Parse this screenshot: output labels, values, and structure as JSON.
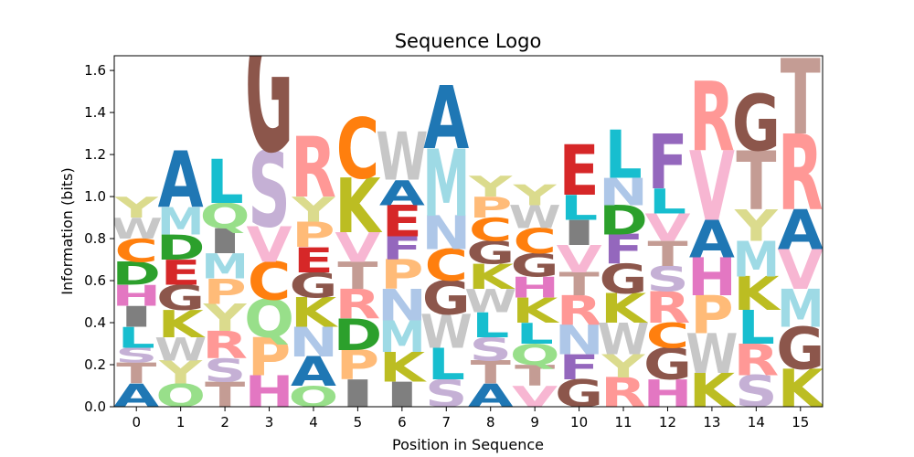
{
  "chart_data": {
    "type": "sequence-logo",
    "title": "Sequence Logo",
    "xlabel": "Position in Sequence",
    "ylabel": "Information (bits)",
    "ylim": [
      0,
      1.67
    ],
    "yticks": [
      "0.0",
      "0.2",
      "0.4",
      "0.6",
      "0.8",
      "1.0",
      "1.2",
      "1.4",
      "1.6"
    ],
    "ytick_values": [
      0,
      0.2,
      0.4,
      0.6,
      0.8,
      1.0,
      1.2,
      1.4,
      1.6
    ],
    "positions": [
      "0",
      "1",
      "2",
      "3",
      "4",
      "5",
      "6",
      "7",
      "8",
      "9",
      "10",
      "11",
      "12",
      "13",
      "14",
      "15"
    ],
    "grid": false,
    "colors": {
      "A": "#1f77b4",
      "C": "#ff7f0e",
      "D": "#2ca02c",
      "E": "#d62728",
      "F": "#9467bd",
      "G": "#8c564b",
      "H": "#e377c2",
      "I": "#7f7f7f",
      "K": "#bcbd22",
      "L": "#17becf",
      "M": "#9edae5",
      "N": "#aec7e8",
      "P": "#ffbb78",
      "Q": "#98df8a",
      "R": "#ff9896",
      "S": "#c5b0d5",
      "T": "#c49c94",
      "V": "#f7b6d2",
      "W": "#c7c7c7",
      "Y": "#dbdb8d"
    },
    "stacks": [
      [
        [
          "A",
          0.11
        ],
        [
          "T",
          0.1
        ],
        [
          "S",
          0.07
        ],
        [
          "L",
          0.1
        ],
        [
          "I",
          0.1
        ],
        [
          "H",
          0.1
        ],
        [
          "D",
          0.11
        ],
        [
          "C",
          0.11
        ],
        [
          "W",
          0.1
        ],
        [
          "Y",
          0.1
        ]
      ],
      [
        [
          "Q",
          0.11
        ],
        [
          "Y",
          0.11
        ],
        [
          "W",
          0.11
        ],
        [
          "K",
          0.13
        ],
        [
          "G",
          0.12
        ],
        [
          "E",
          0.12
        ],
        [
          "D",
          0.12
        ],
        [
          "M",
          0.13
        ],
        [
          "A",
          0.27
        ]
      ],
      [
        [
          "T",
          0.12
        ],
        [
          "S",
          0.11
        ],
        [
          "R",
          0.13
        ],
        [
          "Y",
          0.13
        ],
        [
          "P",
          0.12
        ],
        [
          "M",
          0.12
        ],
        [
          "I",
          0.12
        ],
        [
          "Q",
          0.12
        ],
        [
          "L",
          0.21
        ]
      ],
      [
        [
          "H",
          0.15
        ],
        [
          "P",
          0.18
        ],
        [
          "Q",
          0.18
        ],
        [
          "C",
          0.18
        ],
        [
          "V",
          0.17
        ],
        [
          "S",
          0.36
        ],
        [
          "G",
          0.63
        ]
      ],
      [
        [
          "Q",
          0.1
        ],
        [
          "A",
          0.14
        ],
        [
          "N",
          0.14
        ],
        [
          "K",
          0.14
        ],
        [
          "G",
          0.12
        ],
        [
          "E",
          0.12
        ],
        [
          "P",
          0.12
        ],
        [
          "Y",
          0.12
        ],
        [
          "R",
          0.29
        ]
      ],
      [
        [
          "I",
          0.13
        ],
        [
          "P",
          0.14
        ],
        [
          "D",
          0.15
        ],
        [
          "R",
          0.14
        ],
        [
          "T",
          0.13
        ],
        [
          "V",
          0.14
        ],
        [
          "K",
          0.26
        ],
        [
          "C",
          0.29
        ]
      ],
      [
        [
          "I",
          0.12
        ],
        [
          "K",
          0.14
        ],
        [
          "M",
          0.15
        ],
        [
          "N",
          0.15
        ],
        [
          "P",
          0.14
        ],
        [
          "F",
          0.11
        ],
        [
          "E",
          0.15
        ],
        [
          "A",
          0.12
        ],
        [
          "W",
          0.23
        ]
      ],
      [
        [
          "S",
          0.13
        ],
        [
          "L",
          0.15
        ],
        [
          "W",
          0.16
        ],
        [
          "G",
          0.16
        ],
        [
          "C",
          0.15
        ],
        [
          "N",
          0.16
        ],
        [
          "M",
          0.32
        ],
        [
          "A",
          0.3
        ]
      ],
      [
        [
          "A",
          0.11
        ],
        [
          "T",
          0.11
        ],
        [
          "S",
          0.11
        ],
        [
          "L",
          0.12
        ],
        [
          "W",
          0.11
        ],
        [
          "K",
          0.12
        ],
        [
          "G",
          0.11
        ],
        [
          "C",
          0.11
        ],
        [
          "P",
          0.1
        ],
        [
          "Y",
          0.1
        ]
      ],
      [
        [
          "V",
          0.1
        ],
        [
          "T",
          0.1
        ],
        [
          "Q",
          0.1
        ],
        [
          "L",
          0.1
        ],
        [
          "K",
          0.12
        ],
        [
          "H",
          0.1
        ],
        [
          "G",
          0.11
        ],
        [
          "C",
          0.12
        ],
        [
          "W",
          0.11
        ],
        [
          "Y",
          0.1
        ]
      ],
      [
        [
          "G",
          0.13
        ],
        [
          "F",
          0.12
        ],
        [
          "N",
          0.14
        ],
        [
          "R",
          0.14
        ],
        [
          "T",
          0.11
        ],
        [
          "V",
          0.13
        ],
        [
          "I",
          0.12
        ],
        [
          "L",
          0.12
        ],
        [
          "E",
          0.24
        ]
      ],
      [
        [
          "R",
          0.14
        ],
        [
          "Y",
          0.11
        ],
        [
          "W",
          0.15
        ],
        [
          "K",
          0.14
        ],
        [
          "G",
          0.14
        ],
        [
          "F",
          0.14
        ],
        [
          "D",
          0.14
        ],
        [
          "N",
          0.13
        ],
        [
          "L",
          0.23
        ]
      ],
      [
        [
          "H",
          0.13
        ],
        [
          "G",
          0.15
        ],
        [
          "C",
          0.12
        ],
        [
          "R",
          0.15
        ],
        [
          "S",
          0.12
        ],
        [
          "T",
          0.12
        ],
        [
          "V",
          0.13
        ],
        [
          "L",
          0.12
        ],
        [
          "F",
          0.26
        ]
      ],
      [
        [
          "K",
          0.16
        ],
        [
          "W",
          0.19
        ],
        [
          "P",
          0.18
        ],
        [
          "H",
          0.18
        ],
        [
          "A",
          0.18
        ],
        [
          "V",
          0.33
        ],
        [
          "R",
          0.33
        ]
      ],
      [
        [
          "S",
          0.15
        ],
        [
          "R",
          0.15
        ],
        [
          "L",
          0.16
        ],
        [
          "K",
          0.16
        ],
        [
          "M",
          0.17
        ],
        [
          "Y",
          0.15
        ],
        [
          "T",
          0.28
        ],
        [
          "G",
          0.27
        ]
      ],
      [
        [
          "K",
          0.18
        ],
        [
          "G",
          0.2
        ],
        [
          "M",
          0.18
        ],
        [
          "V",
          0.19
        ],
        [
          "A",
          0.19
        ],
        [
          "R",
          0.36
        ],
        [
          "T",
          0.36
        ]
      ]
    ]
  }
}
